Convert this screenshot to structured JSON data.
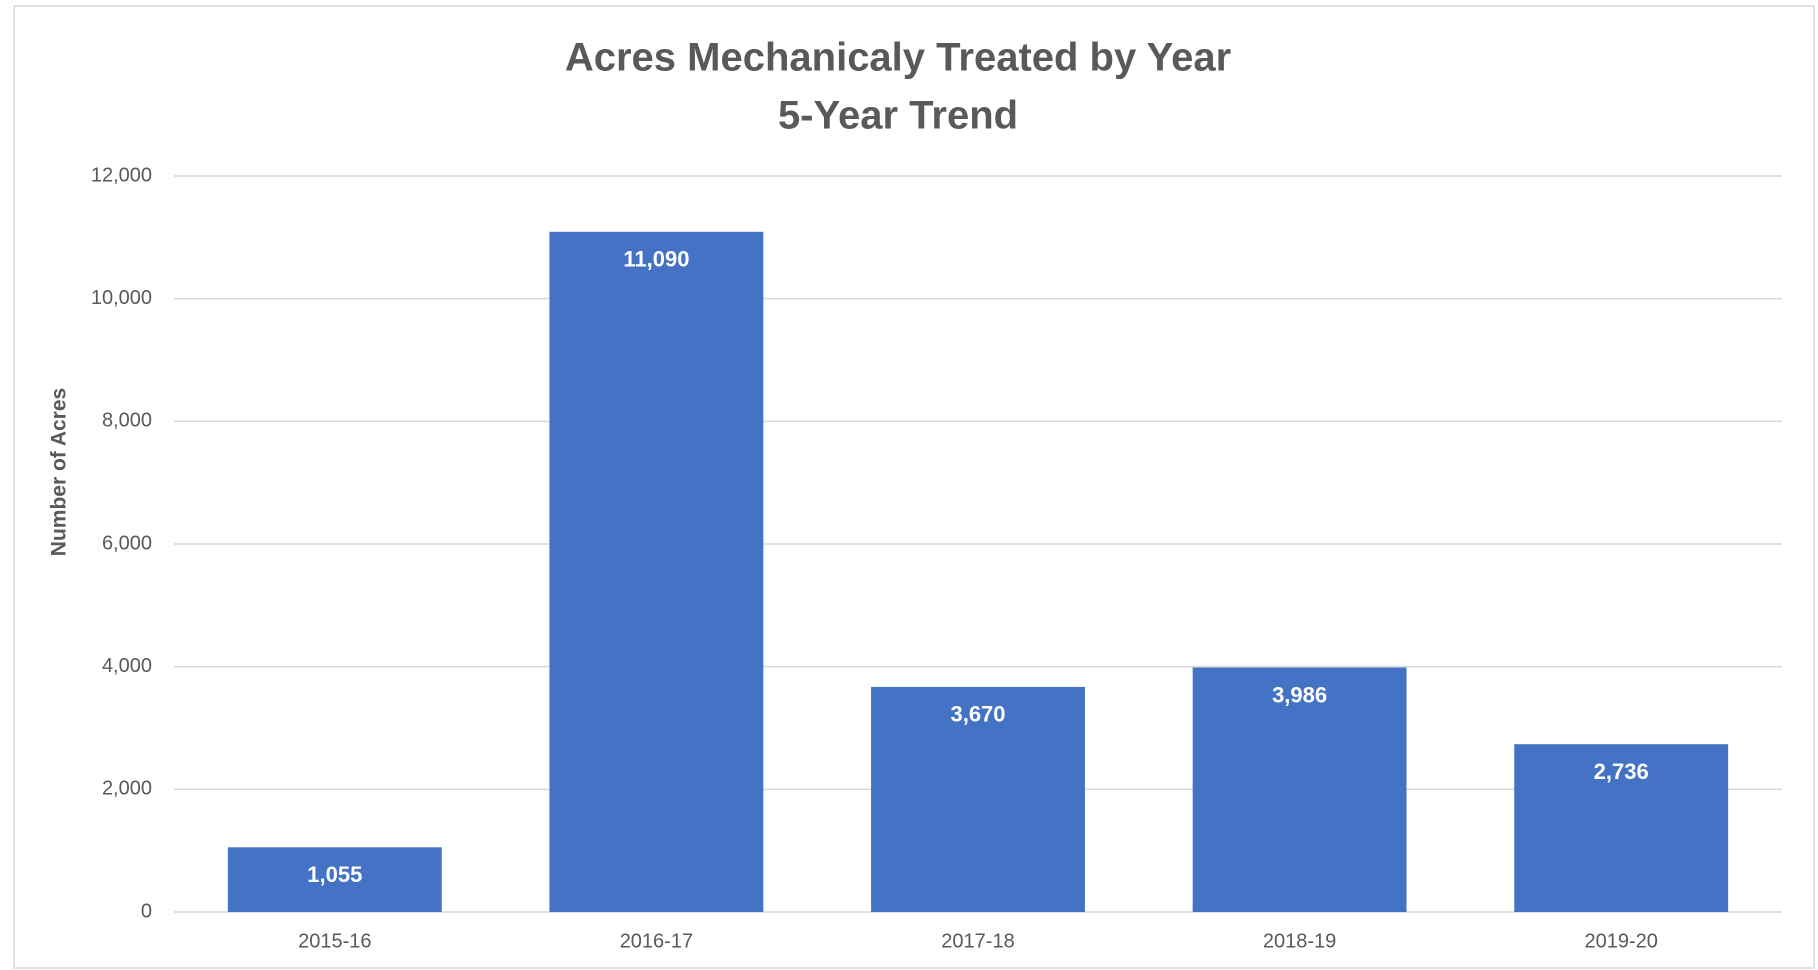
{
  "chart_data": {
    "type": "bar",
    "title": "Acres Mechanicaly Treated by Year",
    "subtitle": "5-Year Trend",
    "y_label": "Number of Acres",
    "categories": [
      "2015-16",
      "2016-17",
      "2017-18",
      "2018-19",
      "2019-20"
    ],
    "values": [
      1055,
      11090,
      3670,
      3986,
      2736
    ],
    "value_labels": [
      "1,055",
      "11,090",
      "3,670",
      "3,986",
      "2,736"
    ],
    "color": "#4472c4",
    "ylim": [
      0,
      12000
    ],
    "yticks": [
      0,
      {
        "value": 2000,
        "label": "2,000"
      },
      {
        "value": 4000,
        "label": "4,000"
      },
      {
        "value": 6000,
        "label": "6,000"
      },
      {
        "value": 8000,
        "label": "8,000"
      },
      {
        "value": 10000,
        "label": "10,000"
      },
      {
        "value": 12000,
        "label": "12,000"
      }
    ],
    "grid": true
  }
}
